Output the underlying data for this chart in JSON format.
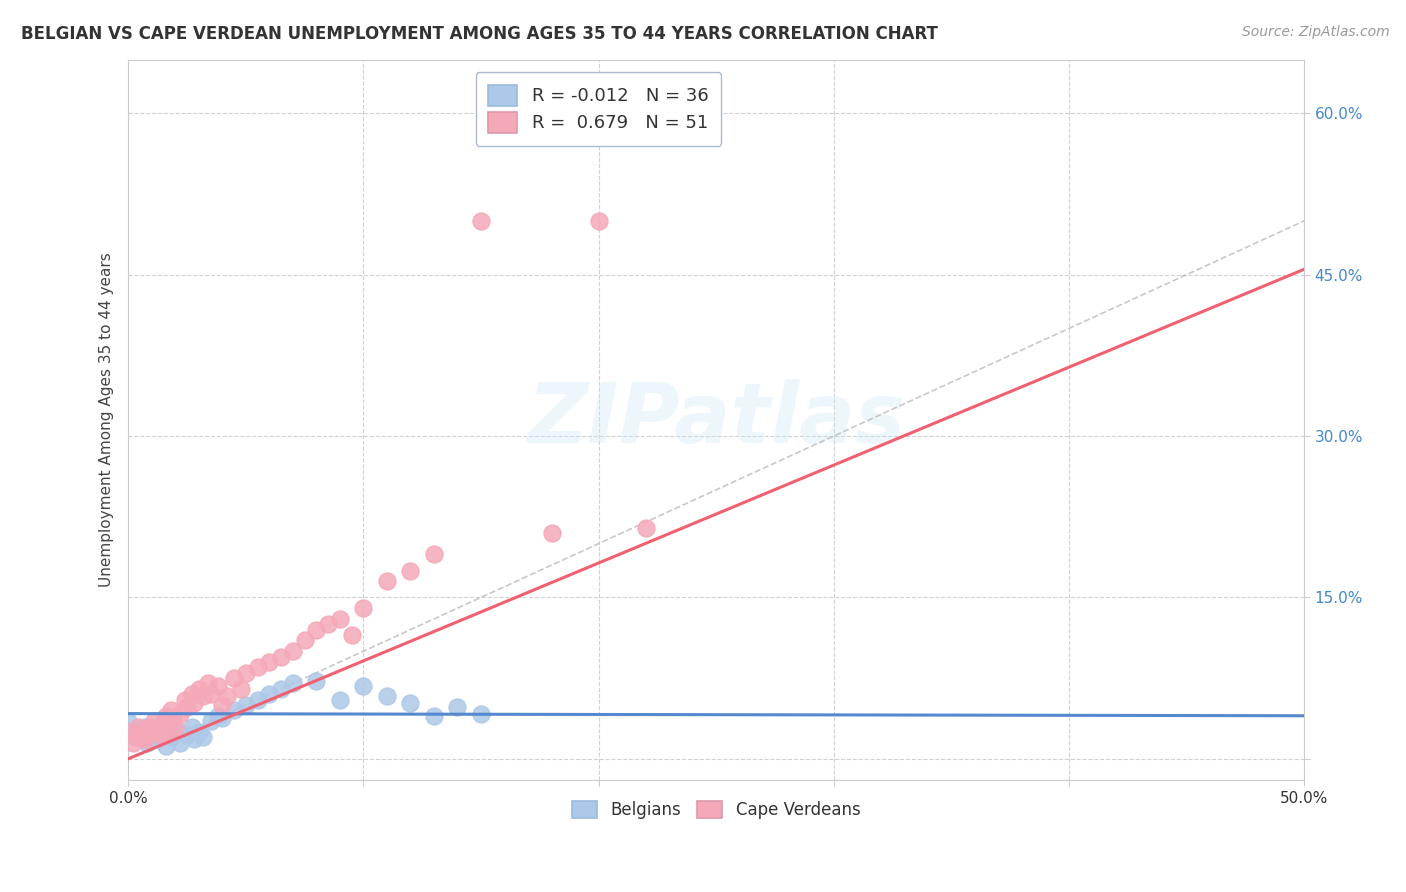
{
  "title": "BELGIAN VS CAPE VERDEAN UNEMPLOYMENT AMONG AGES 35 TO 44 YEARS CORRELATION CHART",
  "source": "Source: ZipAtlas.com",
  "ylabel": "Unemployment Among Ages 35 to 44 years",
  "xlim": [
    0.0,
    0.5
  ],
  "ylim": [
    -0.02,
    0.65
  ],
  "xticks": [
    0.0,
    0.1,
    0.2,
    0.3,
    0.4,
    0.5
  ],
  "yticks": [
    0.0,
    0.15,
    0.3,
    0.45,
    0.6
  ],
  "belgian_R": -0.012,
  "belgian_N": 36,
  "capeverdean_R": 0.679,
  "capeverdean_N": 51,
  "belgian_color": "#adc8e8",
  "capeverdean_color": "#f5a8b8",
  "belgian_line_color": "#5588cc",
  "capeverdean_line_color": "#f06070",
  "diag_line_color": "#bbbbbb",
  "background_color": "#ffffff",
  "watermark": "ZIPatlas",
  "belgian_x": [
    0.0,
    0.003,
    0.005,
    0.007,
    0.008,
    0.01,
    0.012,
    0.013,
    0.015,
    0.016,
    0.018,
    0.019,
    0.02,
    0.022,
    0.025,
    0.027,
    0.028,
    0.03,
    0.032,
    0.035,
    0.038,
    0.04,
    0.045,
    0.05,
    0.055,
    0.06,
    0.065,
    0.07,
    0.08,
    0.09,
    0.1,
    0.11,
    0.12,
    0.13,
    0.14,
    0.15
  ],
  "belgian_y": [
    0.035,
    0.02,
    0.025,
    0.03,
    0.015,
    0.025,
    0.018,
    0.022,
    0.028,
    0.012,
    0.02,
    0.03,
    0.025,
    0.015,
    0.022,
    0.03,
    0.018,
    0.025,
    0.02,
    0.035,
    0.04,
    0.038,
    0.045,
    0.05,
    0.055,
    0.06,
    0.065,
    0.07,
    0.072,
    0.055,
    0.068,
    0.058,
    0.052,
    0.04,
    0.048,
    0.042
  ],
  "capeverdean_x": [
    0.0,
    0.002,
    0.004,
    0.005,
    0.006,
    0.007,
    0.008,
    0.009,
    0.01,
    0.011,
    0.012,
    0.013,
    0.014,
    0.015,
    0.016,
    0.017,
    0.018,
    0.019,
    0.02,
    0.022,
    0.024,
    0.025,
    0.027,
    0.028,
    0.03,
    0.032,
    0.034,
    0.035,
    0.038,
    0.04,
    0.042,
    0.045,
    0.048,
    0.05,
    0.055,
    0.06,
    0.065,
    0.07,
    0.075,
    0.08,
    0.085,
    0.09,
    0.095,
    0.1,
    0.11,
    0.12,
    0.13,
    0.15,
    0.18,
    0.2,
    0.22
  ],
  "capeverdean_y": [
    0.025,
    0.015,
    0.03,
    0.02,
    0.025,
    0.018,
    0.022,
    0.03,
    0.025,
    0.035,
    0.028,
    0.03,
    0.022,
    0.035,
    0.04,
    0.025,
    0.045,
    0.038,
    0.03,
    0.042,
    0.055,
    0.048,
    0.06,
    0.052,
    0.065,
    0.058,
    0.07,
    0.06,
    0.068,
    0.05,
    0.058,
    0.075,
    0.065,
    0.08,
    0.085,
    0.09,
    0.095,
    0.1,
    0.11,
    0.12,
    0.125,
    0.13,
    0.115,
    0.14,
    0.165,
    0.175,
    0.19,
    0.5,
    0.21,
    0.5,
    0.215
  ],
  "belgian_line_y0": 0.042,
  "belgian_line_y1": 0.04,
  "capeverdean_line_y0": 0.0,
  "capeverdean_line_y1": 0.455
}
